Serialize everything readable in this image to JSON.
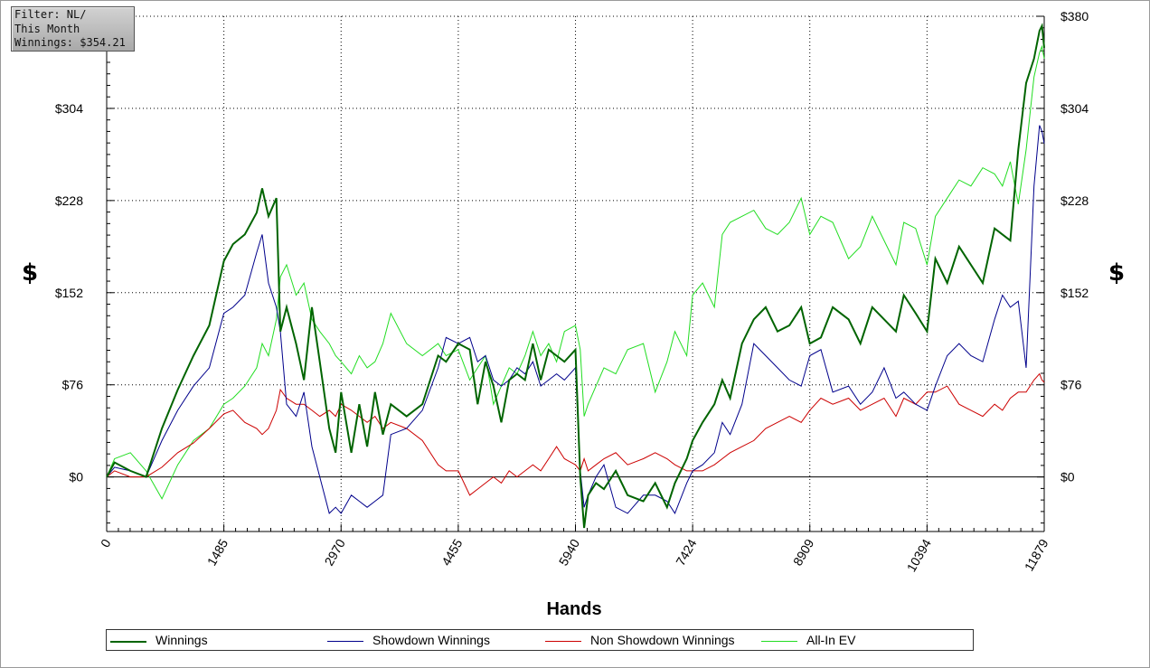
{
  "filter_box": {
    "line1": "Filter: NL/",
    "line2": "This Month",
    "line3": "Winnings: $354.21"
  },
  "colors": {
    "winnings": "#006400",
    "showdown": "#00008b",
    "non_showdown": "#cc0000",
    "allin_ev": "#22dd22",
    "grid": "#000000"
  },
  "chart_data": {
    "type": "line",
    "xlabel": "Hands",
    "ylabel": "$",
    "xlim": [
      0,
      11879
    ],
    "ylim": [
      -45,
      380
    ],
    "x_ticks": [
      "0",
      "1485",
      "2970",
      "4455",
      "5940",
      "7424",
      "8909",
      "10394",
      "11879"
    ],
    "x_tick_values": [
      0,
      1485,
      2970,
      4455,
      5940,
      7424,
      8909,
      10394,
      11879
    ],
    "y_ticks": [
      "$0",
      "$76",
      "$152",
      "$228",
      "$304",
      "$380"
    ],
    "y_tick_values": [
      0,
      76,
      152,
      228,
      304,
      380
    ],
    "grid": true,
    "legend_position": "bottom",
    "series": [
      {
        "name": "Winnings",
        "x": [
          0,
          100,
          300,
          500,
          700,
          900,
          1100,
          1300,
          1485,
          1600,
          1750,
          1900,
          1970,
          2050,
          2150,
          2200,
          2280,
          2400,
          2500,
          2600,
          2700,
          2820,
          2900,
          2970,
          3100,
          3200,
          3300,
          3400,
          3500,
          3600,
          3800,
          4000,
          4200,
          4300,
          4455,
          4600,
          4700,
          4800,
          4900,
          5000,
          5100,
          5200,
          5300,
          5400,
          5500,
          5600,
          5700,
          5800,
          5940,
          6000,
          6050,
          6100,
          6200,
          6300,
          6450,
          6600,
          6800,
          6950,
          7100,
          7200,
          7350,
          7424,
          7550,
          7700,
          7800,
          7900,
          8050,
          8200,
          8350,
          8500,
          8650,
          8800,
          8909,
          9050,
          9200,
          9400,
          9550,
          9700,
          9850,
          10000,
          10100,
          10250,
          10394,
          10500,
          10650,
          10800,
          10950,
          11100,
          11250,
          11350,
          11450,
          11550,
          11650,
          11750,
          11820,
          11850,
          11879
        ],
        "y": [
          0,
          12,
          5,
          0,
          40,
          72,
          100,
          125,
          178,
          192,
          200,
          218,
          238,
          215,
          230,
          120,
          140,
          110,
          80,
          140,
          95,
          40,
          20,
          70,
          20,
          60,
          25,
          70,
          35,
          60,
          50,
          60,
          100,
          95,
          110,
          105,
          60,
          95,
          75,
          45,
          80,
          85,
          80,
          110,
          80,
          105,
          100,
          95,
          105,
          0,
          -42,
          -15,
          -5,
          -10,
          5,
          -15,
          -20,
          -5,
          -25,
          -5,
          15,
          30,
          45,
          60,
          80,
          65,
          110,
          130,
          140,
          120,
          125,
          140,
          110,
          115,
          140,
          130,
          110,
          140,
          130,
          120,
          150,
          135,
          120,
          180,
          160,
          190,
          175,
          160,
          205,
          200,
          195,
          270,
          325,
          345,
          368,
          372,
          354
        ]
      },
      {
        "name": "Showdown Winnings",
        "x": [
          0,
          100,
          300,
          500,
          700,
          900,
          1100,
          1300,
          1485,
          1600,
          1750,
          1900,
          1970,
          2050,
          2150,
          2200,
          2280,
          2400,
          2500,
          2600,
          2700,
          2820,
          2900,
          2970,
          3100,
          3200,
          3300,
          3400,
          3500,
          3600,
          3800,
          4000,
          4200,
          4300,
          4455,
          4600,
          4700,
          4800,
          4900,
          5000,
          5100,
          5200,
          5300,
          5400,
          5500,
          5600,
          5700,
          5800,
          5940,
          6000,
          6050,
          6100,
          6200,
          6300,
          6450,
          6600,
          6800,
          6950,
          7100,
          7200,
          7350,
          7424,
          7550,
          7700,
          7800,
          7900,
          8050,
          8200,
          8350,
          8500,
          8650,
          8800,
          8909,
          9050,
          9200,
          9400,
          9550,
          9700,
          9850,
          10000,
          10100,
          10250,
          10394,
          10500,
          10650,
          10800,
          10950,
          11100,
          11250,
          11350,
          11450,
          11550,
          11650,
          11750,
          11820,
          11850,
          11879
        ],
        "y": [
          0,
          8,
          5,
          0,
          30,
          55,
          75,
          90,
          135,
          140,
          150,
          185,
          200,
          160,
          140,
          120,
          60,
          50,
          70,
          25,
          0,
          -30,
          -25,
          -30,
          -15,
          -20,
          -25,
          -20,
          -15,
          35,
          40,
          55,
          90,
          115,
          110,
          115,
          95,
          100,
          80,
          75,
          80,
          90,
          85,
          95,
          75,
          80,
          85,
          80,
          90,
          5,
          -25,
          -15,
          0,
          10,
          -25,
          -30,
          -15,
          -15,
          -20,
          -30,
          -5,
          5,
          10,
          20,
          45,
          35,
          60,
          110,
          100,
          90,
          80,
          75,
          100,
          105,
          70,
          75,
          60,
          70,
          90,
          65,
          70,
          60,
          55,
          75,
          100,
          110,
          100,
          95,
          130,
          150,
          140,
          145,
          90,
          240,
          290,
          285,
          275
        ]
      },
      {
        "name": "Non Showdown Winnings",
        "x": [
          0,
          100,
          300,
          500,
          700,
          900,
          1100,
          1300,
          1485,
          1600,
          1750,
          1900,
          1970,
          2050,
          2150,
          2200,
          2280,
          2400,
          2500,
          2600,
          2700,
          2820,
          2900,
          2970,
          3100,
          3200,
          3300,
          3400,
          3500,
          3600,
          3800,
          4000,
          4200,
          4300,
          4455,
          4600,
          4700,
          4800,
          4900,
          5000,
          5100,
          5200,
          5300,
          5400,
          5500,
          5600,
          5700,
          5800,
          5940,
          6000,
          6050,
          6100,
          6200,
          6300,
          6450,
          6600,
          6800,
          6950,
          7100,
          7200,
          7350,
          7424,
          7550,
          7700,
          7800,
          7900,
          8050,
          8200,
          8350,
          8500,
          8650,
          8800,
          8909,
          9050,
          9200,
          9400,
          9550,
          9700,
          9850,
          10000,
          10100,
          10250,
          10394,
          10500,
          10650,
          10800,
          10950,
          11100,
          11250,
          11350,
          11450,
          11550,
          11650,
          11750,
          11820,
          11850,
          11879
        ],
        "y": [
          0,
          5,
          0,
          0,
          8,
          20,
          28,
          40,
          52,
          55,
          45,
          40,
          35,
          40,
          55,
          72,
          65,
          60,
          60,
          55,
          50,
          55,
          50,
          60,
          55,
          50,
          45,
          50,
          40,
          45,
          40,
          30,
          10,
          5,
          5,
          -15,
          -10,
          -5,
          0,
          -5,
          5,
          0,
          5,
          10,
          5,
          15,
          25,
          15,
          10,
          5,
          15,
          5,
          10,
          15,
          20,
          10,
          15,
          20,
          15,
          10,
          5,
          5,
          5,
          10,
          15,
          20,
          25,
          30,
          40,
          45,
          50,
          45,
          55,
          65,
          60,
          65,
          55,
          60,
          65,
          50,
          65,
          60,
          70,
          70,
          75,
          60,
          55,
          50,
          60,
          55,
          65,
          70,
          70,
          80,
          85,
          80,
          78
        ]
      },
      {
        "name": "All-In EV",
        "x": [
          0,
          100,
          300,
          500,
          700,
          900,
          1100,
          1300,
          1485,
          1600,
          1750,
          1900,
          1970,
          2050,
          2150,
          2200,
          2280,
          2400,
          2500,
          2600,
          2700,
          2820,
          2900,
          2970,
          3100,
          3200,
          3300,
          3400,
          3500,
          3600,
          3800,
          4000,
          4200,
          4300,
          4455,
          4600,
          4700,
          4800,
          4900,
          5000,
          5100,
          5200,
          5300,
          5400,
          5500,
          5600,
          5700,
          5800,
          5940,
          6000,
          6050,
          6100,
          6200,
          6300,
          6450,
          6600,
          6800,
          6950,
          7100,
          7200,
          7350,
          7424,
          7550,
          7700,
          7800,
          7900,
          8050,
          8200,
          8350,
          8500,
          8650,
          8800,
          8909,
          9050,
          9200,
          9400,
          9550,
          9700,
          9850,
          10000,
          10100,
          10250,
          10394,
          10500,
          10650,
          10800,
          10950,
          11100,
          11250,
          11350,
          11450,
          11550,
          11650,
          11750,
          11820,
          11850,
          11879
        ],
        "y": [
          0,
          15,
          20,
          5,
          -18,
          10,
          30,
          40,
          60,
          65,
          75,
          90,
          110,
          100,
          130,
          165,
          175,
          150,
          160,
          130,
          120,
          110,
          100,
          95,
          85,
          100,
          90,
          95,
          110,
          135,
          110,
          100,
          110,
          100,
          105,
          80,
          90,
          100,
          60,
          75,
          90,
          85,
          100,
          120,
          100,
          110,
          95,
          120,
          125,
          105,
          50,
          60,
          75,
          90,
          85,
          105,
          110,
          70,
          95,
          120,
          100,
          150,
          160,
          140,
          200,
          210,
          215,
          220,
          205,
          200,
          210,
          230,
          200,
          215,
          210,
          180,
          190,
          215,
          195,
          175,
          210,
          205,
          175,
          215,
          230,
          245,
          240,
          255,
          250,
          240,
          260,
          225,
          270,
          330,
          350,
          355,
          345
        ]
      }
    ]
  },
  "legend": {
    "winnings": "Winnings",
    "showdown": "Showdown Winnings",
    "non_showdown": "Non Showdown Winnings",
    "allin_ev": "All-In EV"
  }
}
